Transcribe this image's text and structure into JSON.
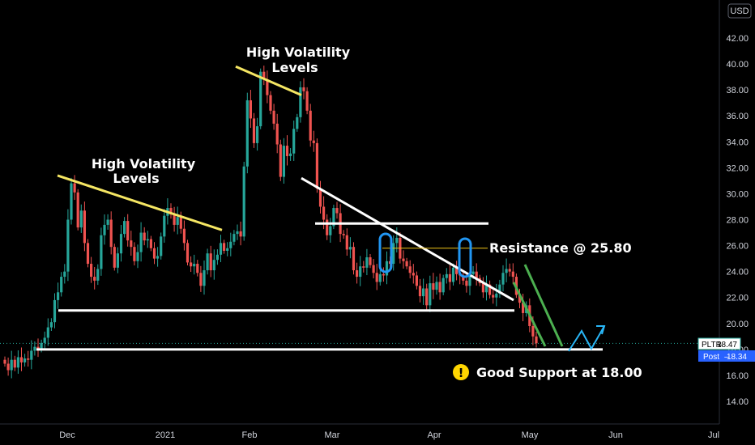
{
  "currency_badge": "USD",
  "price_tag": {
    "symbol": "PLTR",
    "value": "18.47"
  },
  "post_tag": {
    "label": "Post",
    "value": "18.34"
  },
  "annotations": {
    "hv_left": [
      "High Volatility",
      "Levels"
    ],
    "hv_top": [
      "High Volatility",
      "Levels"
    ],
    "resistance": "Resistance @ 25.80",
    "support": "Good Support at 18.00",
    "warning_glyph": "!"
  },
  "colors": {
    "up": "#26a69a",
    "down": "#ef5350",
    "yellow_line": "#f5e663",
    "white_line": "#ffffff",
    "green_line": "#4caf50",
    "blue_marker": "#2196f3",
    "projection": "#29b6f6",
    "resistance_line": "#f0c419",
    "post_badge": "#2962ff"
  },
  "chart_data": {
    "type": "candlestick",
    "ticker": "PLTR",
    "currency": "USD",
    "ylim": [
      12.5,
      43.5
    ],
    "yticks": [
      14.0,
      16.0,
      18.0,
      20.0,
      22.0,
      24.0,
      26.0,
      28.0,
      30.0,
      32.0,
      34.0,
      36.0,
      38.0,
      40.0,
      42.0
    ],
    "x_tick_labels": [
      "Dec",
      "2021",
      "Feb",
      "Mar",
      "Apr",
      "May",
      "Jun",
      "Jul"
    ],
    "close": [
      16.9,
      16.4,
      17.2,
      16.6,
      17.4,
      17.0,
      17.3,
      17.2,
      17.9,
      18.2,
      18.0,
      18.5,
      18.9,
      19.7,
      20.1,
      21.8,
      22.4,
      23.6,
      24.0,
      28.0,
      30.8,
      30.1,
      27.4,
      28.7,
      26.2,
      24.6,
      23.6,
      23.3,
      24.2,
      26.8,
      27.6,
      28.0,
      25.9,
      24.3,
      25.4,
      26.9,
      27.9,
      26.4,
      25.9,
      24.8,
      25.5,
      27.0,
      26.4,
      26.5,
      25.8,
      25.0,
      25.2,
      26.7,
      28.3,
      28.9,
      28.4,
      27.6,
      28.2,
      27.3,
      26.2,
      24.7,
      24.4,
      24.6,
      23.9,
      22.9,
      24.1,
      25.4,
      24.1,
      24.9,
      25.3,
      26.2,
      25.6,
      25.8,
      26.3,
      26.9,
      27.1,
      26.7,
      32.1,
      37.2,
      35.8,
      33.9,
      35.2,
      39.4,
      38.8,
      37.6,
      36.4,
      35.4,
      33.8,
      31.3,
      33.7,
      32.9,
      33.1,
      35.0,
      35.9,
      38.2,
      37.9,
      36.4,
      34.1,
      33.9,
      30.4,
      29.0,
      28.0,
      26.8,
      27.5,
      28.9,
      28.5,
      26.9,
      26.8,
      25.7,
      25.9,
      24.1,
      23.6,
      24.4,
      24.3,
      25.1,
      24.5,
      23.9,
      23.2,
      23.8,
      23.7,
      24.8,
      24.6,
      26.2,
      26.6,
      25.0,
      24.8,
      24.4,
      23.9,
      23.7,
      22.9,
      22.1,
      22.7,
      21.4,
      23.1,
      22.6,
      23.2,
      22.4,
      23.5,
      23.8,
      23.2,
      24.3,
      23.8,
      23.7,
      23.3,
      22.9,
      23.8,
      24.0,
      23.5,
      23.1,
      22.4,
      23.0,
      22.2,
      22.0,
      22.3,
      23.0,
      23.9,
      24.2,
      24.0,
      23.6,
      22.2,
      21.6,
      20.8,
      21.4,
      19.8,
      19.0,
      18.47
    ],
    "lines": [
      {
        "label": "hv-trend-left",
        "from": [
          "Nov 24",
          31.4
        ],
        "to": [
          "Jan 27",
          27.2
        ]
      },
      {
        "label": "hv-trend-top",
        "from": [
          "Jan 29",
          39.8
        ],
        "to": [
          "Feb 17",
          37.6
        ]
      },
      {
        "label": "descending-trendline",
        "from": [
          "Feb 19",
          31.2
        ],
        "to": [
          "Apr 30",
          21.8
        ]
      },
      {
        "label": "horizontal-27.7",
        "from": [
          "Feb 25",
          27.7
        ],
        "to": [
          "Apr 26",
          27.7
        ]
      },
      {
        "label": "support-21.0",
        "from": [
          "Nov 20",
          21.0
        ],
        "to": [
          "Apr 30",
          21.0
        ]
      },
      {
        "label": "resistance",
        "value": 25.8
      },
      {
        "label": "support",
        "value": 18.0
      }
    ],
    "last_price": 18.47,
    "post_price": 18.34
  }
}
